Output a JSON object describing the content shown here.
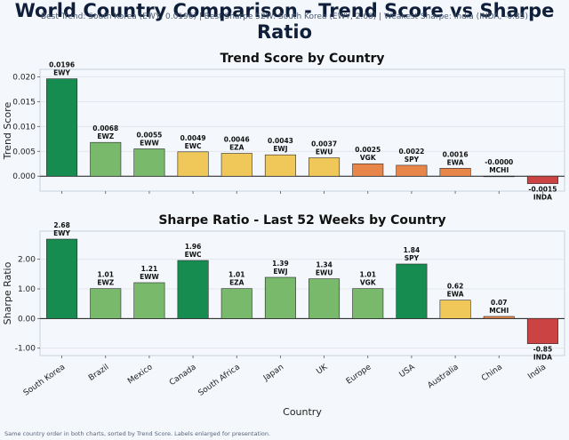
{
  "header": {
    "title": "World Country Comparison - Trend Score vs Sharpe Ratio",
    "subtitle": "Best Trend: South Korea (EWY, 0.0196)   |   Best Sharpe 52W: South Korea (EWY, 2.68)   |   Weakest Sharpe: India (INDA, -0.85)"
  },
  "footer": "Same country order in both charts, sorted by Trend Score. Labels enlarged for presentation.",
  "colors": {
    "dark_green": "#178c51",
    "light_green": "#78b96b",
    "yellow": "#f0c85a",
    "orange": "#e8864a",
    "red": "#cc4343"
  },
  "chart_data": [
    {
      "type": "bar",
      "title": "Trend Score by Country",
      "xlabel": "",
      "ylabel": "Trend Score",
      "ylim": [
        -0.003,
        0.0215
      ],
      "yticks": [
        0.0,
        0.005,
        0.01,
        0.015,
        0.02
      ],
      "ytick_labels": [
        "0.000",
        "0.005",
        "0.010",
        "0.015",
        "0.020"
      ],
      "grid": true,
      "categories": [
        "South Korea",
        "Brazil",
        "Mexico",
        "Canada",
        "South Africa",
        "Japan",
        "UK",
        "Europe",
        "USA",
        "Australia",
        "China",
        "India"
      ],
      "tickers": [
        "EWY",
        "EWZ",
        "EWW",
        "EWC",
        "EZA",
        "EWJ",
        "EWU",
        "VGK",
        "SPY",
        "EWA",
        "MCHI",
        "INDA"
      ],
      "values": [
        0.0196,
        0.0068,
        0.0055,
        0.0049,
        0.0046,
        0.0043,
        0.0037,
        0.0025,
        0.0022,
        0.0016,
        -0.0,
        -0.0015
      ],
      "value_labels": [
        "0.0196",
        "0.0068",
        "0.0055",
        "0.0049",
        "0.0046",
        "0.0043",
        "0.0037",
        "0.0025",
        "0.0022",
        "0.0016",
        "-0.0000",
        "-0.0015"
      ],
      "bar_colors": [
        "#178c51",
        "#78b96b",
        "#78b96b",
        "#f0c85a",
        "#f0c85a",
        "#f0c85a",
        "#f0c85a",
        "#e8864a",
        "#e8864a",
        "#e8864a",
        "#cc4343",
        "#cc4343"
      ]
    },
    {
      "type": "bar",
      "title": "Sharpe Ratio - Last 52 Weeks by Country",
      "xlabel": "Country",
      "ylabel": "Sharpe Ratio",
      "ylim": [
        -1.25,
        2.95
      ],
      "yticks": [
        -1.0,
        0.0,
        1.0,
        2.0
      ],
      "ytick_labels": [
        "-1.00",
        "0.00",
        "1.00",
        "2.00"
      ],
      "grid": true,
      "categories": [
        "South Korea",
        "Brazil",
        "Mexico",
        "Canada",
        "South Africa",
        "Japan",
        "UK",
        "Europe",
        "USA",
        "Australia",
        "China",
        "India"
      ],
      "tickers": [
        "EWY",
        "EWZ",
        "EWW",
        "EWC",
        "EZA",
        "EWJ",
        "EWU",
        "VGK",
        "SPY",
        "EWA",
        "MCHI",
        "INDA"
      ],
      "values": [
        2.68,
        1.01,
        1.21,
        1.96,
        1.01,
        1.39,
        1.34,
        1.01,
        1.84,
        0.62,
        0.07,
        -0.85
      ],
      "value_labels": [
        "2.68",
        "1.01",
        "1.21",
        "1.96",
        "1.01",
        "1.39",
        "1.34",
        "1.01",
        "1.84",
        "0.62",
        "0.07",
        "-0.85"
      ],
      "bar_colors": [
        "#178c51",
        "#78b96b",
        "#78b96b",
        "#178c51",
        "#78b96b",
        "#78b96b",
        "#78b96b",
        "#78b96b",
        "#178c51",
        "#f0c85a",
        "#e8864a",
        "#cc4343"
      ]
    }
  ]
}
